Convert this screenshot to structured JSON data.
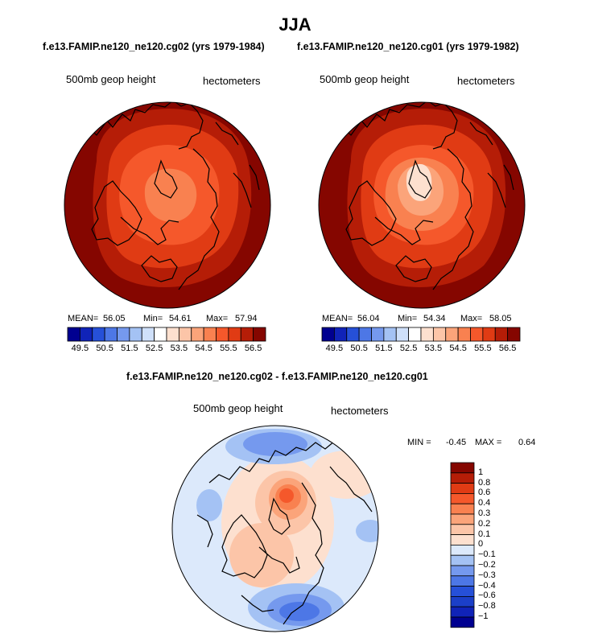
{
  "page": {
    "title": "JJA",
    "left_subtitle": "f.e13.FAMIP.ne120_ne120.cg02 (yrs 1979-1984)",
    "right_subtitle": "f.e13.FAMIP.ne120_ne120.cg01 (yrs 1979-1982)",
    "diff_subtitle": "f.e13.FAMIP.ne120_ne120.cg02 - f.e13.FAMIP.ne120_ne120.cg01"
  },
  "chart_data": [
    {
      "type": "heatmap",
      "projection": "north-polar-stereographic",
      "variable_label": "500mb geop height",
      "units_label": "hectometers",
      "stats": {
        "mean_label": "MEAN=",
        "mean": "56.05",
        "min_label": "Min=",
        "min": "54.61",
        "max_label": "Max=",
        "max": "57.94"
      },
      "colorbar": {
        "orientation": "horizontal",
        "levels": [
          "49.5",
          "50.5",
          "51.5",
          "52.5",
          "53.5",
          "54.5",
          "55.5",
          "56.5"
        ],
        "colors": [
          "#000090",
          "#1023b8",
          "#2650d8",
          "#4d77e6",
          "#7599ee",
          "#a4c2f4",
          "#cfe0fa",
          "#ffffff",
          "#fde0cf",
          "#fcc5a8",
          "#fba47a",
          "#f98150",
          "#f5582b",
          "#e03b14",
          "#b51d07",
          "#850600"
        ]
      },
      "field_colors": [
        "#850600",
        "#b51d07",
        "#e03b14",
        "#f5582b",
        "#f98150"
      ]
    },
    {
      "type": "heatmap",
      "projection": "north-polar-stereographic",
      "variable_label": "500mb geop height",
      "units_label": "hectometers",
      "stats": {
        "mean_label": "MEAN=",
        "mean": "56.04",
        "min_label": "Min=",
        "min": "54.34",
        "max_label": "Max=",
        "max": "58.05"
      },
      "colorbar": {
        "orientation": "horizontal",
        "levels": [
          "49.5",
          "50.5",
          "51.5",
          "52.5",
          "53.5",
          "54.5",
          "55.5",
          "56.5"
        ],
        "colors": [
          "#000090",
          "#1023b8",
          "#2650d8",
          "#4d77e6",
          "#7599ee",
          "#a4c2f4",
          "#cfe0fa",
          "#ffffff",
          "#fde0cf",
          "#fcc5a8",
          "#fba47a",
          "#f98150",
          "#f5582b",
          "#e03b14",
          "#b51d07",
          "#850600"
        ]
      },
      "field_colors": [
        "#850600",
        "#b51d07",
        "#e03b14",
        "#f5582b",
        "#f98150",
        "#fba47a",
        "#fde0cf"
      ]
    },
    {
      "type": "heatmap",
      "projection": "north-polar-stereographic",
      "variable_label": "500mb geop height",
      "units_label": "hectometers",
      "stats": {
        "min_label": "MIN =",
        "min": "-0.45",
        "max_label": "MAX =",
        "max": "0.64"
      },
      "colorbar": {
        "orientation": "vertical",
        "levels": [
          "1",
          "0.8",
          "0.6",
          "0.4",
          "0.3",
          "0.2",
          "0.1",
          "0",
          "−0.1",
          "−0.2",
          "−0.3",
          "−0.4",
          "−0.6",
          "−0.8",
          "−1"
        ],
        "colors": [
          "#850600",
          "#b51d07",
          "#e03b14",
          "#f5582b",
          "#f98150",
          "#fba47a",
          "#fcc5a8",
          "#fde0cf",
          "#dce9fb",
          "#a4c2f4",
          "#7599ee",
          "#4d77e6",
          "#2650d8",
          "#1b3fc8",
          "#1023b8",
          "#000090"
        ]
      }
    }
  ]
}
